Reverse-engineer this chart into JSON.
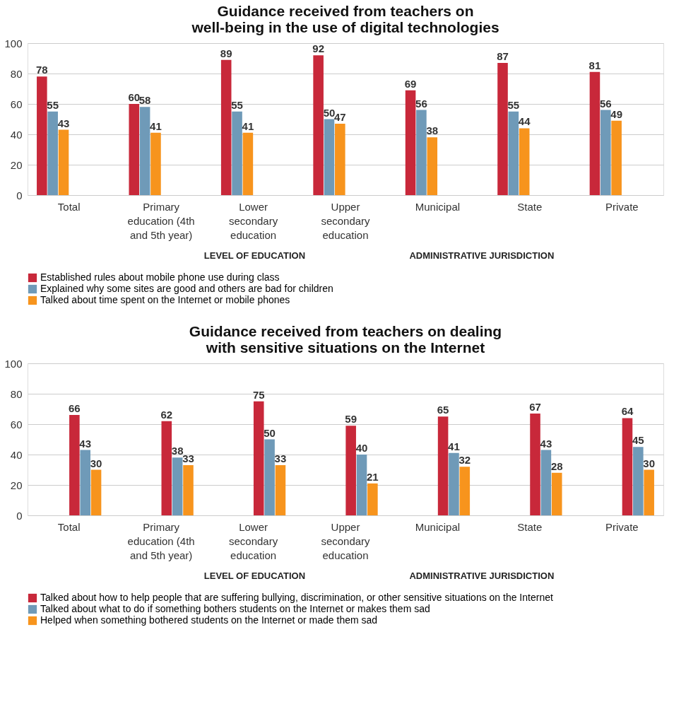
{
  "chart_data": [
    {
      "type": "bar",
      "title": "Guidance received from teachers on\nwell-being in the use of digital technologies",
      "categories": [
        "Total",
        "Primary education (4th and 5th year)",
        "Lower secondary education",
        "Upper secondary education",
        "Municipal",
        "State",
        "Private"
      ],
      "series": [
        {
          "name": "Established rules about mobile phone use during class",
          "color": "#c8283a",
          "values": [
            78,
            60,
            89,
            92,
            69,
            87,
            81
          ]
        },
        {
          "name": "Explained why some sites are good and others are bad for children",
          "color": "#6f9ab8",
          "values": [
            55,
            58,
            55,
            50,
            56,
            55,
            56
          ]
        },
        {
          "name": "Talked about time spent on the Internet or mobile phones",
          "color": "#f7941d",
          "values": [
            43,
            41,
            41,
            47,
            38,
            44,
            49
          ]
        }
      ],
      "annotations": [
        "LEVEL OF EDUCATION",
        "ADMINISTRATIVE JURISDICTION"
      ],
      "ylim": [
        0,
        100
      ],
      "yticks": [
        0,
        20,
        40,
        60,
        80,
        100
      ],
      "grid": "y",
      "data_labels": true,
      "legend": "bottom"
    },
    {
      "type": "bar",
      "title": "Guidance received from teachers on dealing\nwith sensitive situations on the Internet",
      "categories": [
        "Total",
        "Primary education (4th and 5th year)",
        "Lower secondary education",
        "Upper secondary education",
        "Municipal",
        "State",
        "Private"
      ],
      "series": [
        {
          "name": "Talked about how to help people that are suffering bullying, discrimination, or other sensitive situations on the Internet",
          "color": "#c8283a",
          "values": [
            66,
            62,
            75,
            59,
            65,
            67,
            64
          ]
        },
        {
          "name": "Talked about what to do if something bothers students on the Internet or makes them sad",
          "color": "#6f9ab8",
          "values": [
            43,
            38,
            50,
            40,
            41,
            43,
            45
          ]
        },
        {
          "name": "Helped when something bothered students on the Internet or made them sad",
          "color": "#f7941d",
          "values": [
            30,
            33,
            33,
            21,
            32,
            28,
            30
          ]
        }
      ],
      "annotations": [
        "LEVEL OF EDUCATION",
        "ADMINISTRATIVE JURISDICTION"
      ],
      "ylim": [
        0,
        100
      ],
      "yticks": [
        0,
        20,
        40,
        60,
        80,
        100
      ],
      "grid": "y",
      "data_labels": true,
      "legend": "bottom"
    }
  ]
}
